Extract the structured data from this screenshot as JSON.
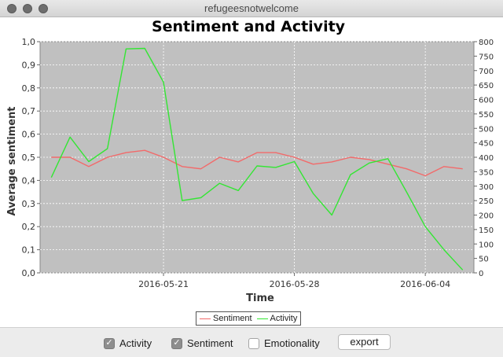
{
  "window": {
    "title": "refugeesnotwelcome"
  },
  "chart_data": {
    "type": "line",
    "title": "Sentiment and Activity",
    "xlabel": "Time",
    "ylabel": "Average sentiment",
    "y_left": {
      "min": 0.0,
      "max": 1.0,
      "ticks": [
        "0,0",
        "0,1",
        "0,2",
        "0,3",
        "0,4",
        "0,5",
        "0,6",
        "0,7",
        "0,8",
        "0,9",
        "1,0"
      ]
    },
    "y_right": {
      "min": 0,
      "max": 800,
      "ticks": [
        "0",
        "50",
        "100",
        "150",
        "200",
        "250",
        "300",
        "350",
        "400",
        "450",
        "500",
        "550",
        "600",
        "650",
        "700",
        "750",
        "800"
      ]
    },
    "x_ticks": [
      "2016-05-21",
      "2016-05-28",
      "2016-06-04"
    ],
    "x_dates": [
      "2016-05-15",
      "2016-05-16",
      "2016-05-17",
      "2016-05-18",
      "2016-05-19",
      "2016-05-20",
      "2016-05-21",
      "2016-05-22",
      "2016-05-23",
      "2016-05-24",
      "2016-05-25",
      "2016-05-26",
      "2016-05-27",
      "2016-05-28",
      "2016-05-29",
      "2016-05-30",
      "2016-05-31",
      "2016-06-01",
      "2016-06-02",
      "2016-06-03",
      "2016-06-04",
      "2016-06-05",
      "2016-06-06"
    ],
    "series": [
      {
        "name": "Sentiment",
        "axis": "left",
        "color": "#f26a6a",
        "values": [
          0.5,
          0.5,
          0.46,
          0.5,
          0.52,
          0.53,
          0.5,
          0.46,
          0.45,
          0.5,
          0.48,
          0.52,
          0.52,
          0.5,
          0.47,
          0.48,
          0.5,
          0.49,
          0.47,
          0.45,
          0.42,
          0.46,
          0.45
        ]
      },
      {
        "name": "Activity",
        "axis": "right",
        "color": "#33e633",
        "values": [
          330,
          470,
          385,
          430,
          775,
          777,
          660,
          250,
          260,
          310,
          285,
          370,
          365,
          385,
          275,
          200,
          340,
          380,
          395,
          280,
          160,
          80,
          10
        ]
      }
    ],
    "grid": true,
    "legend": "bottom-center"
  },
  "controls": {
    "activity": {
      "label": "Activity",
      "checked": true
    },
    "sentiment": {
      "label": "Sentiment",
      "checked": true
    },
    "emotionality": {
      "label": "Emotionality",
      "checked": false
    },
    "export_label": "export"
  },
  "colors": {
    "plot_bg": "#c0c0c0",
    "grid": "#ffffff",
    "checkbox_checked": "#8e8e8e"
  }
}
